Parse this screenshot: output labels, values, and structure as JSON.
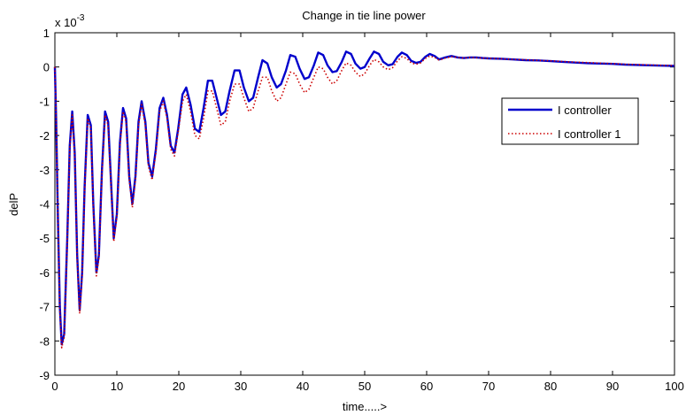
{
  "chart_data": {
    "type": "line",
    "title": "Change in tie line power",
    "xlabel": "time.....>",
    "ylabel": "delP",
    "y_multiplier": "x 10",
    "y_multiplier_exponent": "-3",
    "xlim": [
      0,
      100
    ],
    "ylim": [
      -9,
      1
    ],
    "x_ticks": [
      0,
      10,
      20,
      30,
      40,
      50,
      60,
      70,
      80,
      90,
      100
    ],
    "y_ticks": [
      1,
      0,
      -1,
      -2,
      -3,
      -4,
      -5,
      -6,
      -7,
      -8,
      -9
    ],
    "y_tick_labels": [
      "1",
      "0",
      "-1",
      "-2",
      "-3",
      "-4",
      "-5",
      "-6",
      "-7",
      "-8",
      "-9"
    ],
    "grid": false,
    "legend_position": "upper-right",
    "series": [
      {
        "name": "I controller",
        "color": "#0000cc",
        "style": "solid",
        "x": [
          0,
          0.2,
          0.5,
          0.8,
          1.1,
          1.5,
          2.0,
          2.4,
          2.8,
          3.2,
          3.6,
          4.0,
          4.4,
          4.8,
          5.3,
          5.8,
          6.2,
          6.7,
          7.1,
          7.6,
          8.1,
          8.6,
          9.1,
          9.5,
          10.0,
          10.5,
          11.0,
          11.5,
          12.0,
          12.5,
          13.0,
          13.5,
          14.0,
          14.6,
          15.1,
          15.7,
          16.3,
          16.9,
          17.5,
          18.1,
          18.7,
          19.3,
          19.9,
          20.6,
          21.2,
          21.9,
          22.6,
          23.3,
          24.0,
          24.7,
          25.4,
          26.1,
          26.8,
          27.5,
          28.2,
          29.0,
          29.8,
          30.5,
          31.3,
          32.0,
          32.8,
          33.5,
          34.3,
          35.0,
          35.8,
          36.5,
          37.3,
          38.0,
          38.8,
          39.5,
          40.3,
          41.0,
          41.8,
          42.5,
          43.3,
          44.0,
          44.8,
          45.5,
          46.3,
          47.0,
          47.8,
          48.5,
          49.3,
          50.0,
          50.8,
          51.5,
          52.3,
          53.0,
          53.8,
          54.5,
          55.3,
          56.0,
          56.8,
          57.5,
          58.3,
          59.0,
          59.8,
          60.5,
          61.3,
          62.0,
          63.0,
          64.0,
          65.0,
          66.0,
          67.0,
          68.0,
          69.0,
          70.0,
          72.0,
          74.0,
          76.0,
          78.0,
          80.0,
          82.0,
          84.0,
          86.0,
          88.0,
          90.0,
          92.0,
          94.0,
          96.0,
          98.0,
          100.0
        ],
        "y": [
          0,
          -1.5,
          -4.5,
          -7.0,
          -8.1,
          -7.8,
          -5.0,
          -2.3,
          -1.3,
          -2.5,
          -5.5,
          -7.1,
          -6.0,
          -3.5,
          -1.4,
          -1.7,
          -4.0,
          -6.0,
          -5.5,
          -3.0,
          -1.3,
          -1.6,
          -3.5,
          -5.0,
          -4.3,
          -2.2,
          -1.2,
          -1.5,
          -3.2,
          -4.0,
          -3.2,
          -1.6,
          -1.0,
          -1.6,
          -2.8,
          -3.2,
          -2.4,
          -1.2,
          -0.9,
          -1.4,
          -2.3,
          -2.5,
          -1.8,
          -0.8,
          -0.6,
          -1.1,
          -1.8,
          -1.9,
          -1.2,
          -0.4,
          -0.4,
          -0.9,
          -1.4,
          -1.3,
          -0.7,
          -0.1,
          -0.1,
          -0.6,
          -1.0,
          -0.9,
          -0.3,
          0.2,
          0.1,
          -0.3,
          -0.6,
          -0.5,
          -0.1,
          0.35,
          0.3,
          -0.05,
          -0.35,
          -0.3,
          0.05,
          0.42,
          0.35,
          0.05,
          -0.15,
          -0.12,
          0.15,
          0.45,
          0.38,
          0.1,
          -0.05,
          0.0,
          0.25,
          0.45,
          0.38,
          0.15,
          0.05,
          0.08,
          0.3,
          0.42,
          0.35,
          0.18,
          0.12,
          0.15,
          0.3,
          0.38,
          0.32,
          0.22,
          0.28,
          0.32,
          0.28,
          0.26,
          0.28,
          0.28,
          0.26,
          0.25,
          0.24,
          0.22,
          0.2,
          0.19,
          0.17,
          0.15,
          0.13,
          0.11,
          0.1,
          0.09,
          0.07,
          0.06,
          0.05,
          0.04,
          0.03
        ]
      },
      {
        "name": "I controller 1",
        "color": "#cc0000",
        "style": "dotted",
        "x": [
          0,
          0.2,
          0.5,
          0.8,
          1.1,
          1.5,
          2.0,
          2.4,
          2.8,
          3.2,
          3.6,
          4.0,
          4.4,
          4.8,
          5.3,
          5.8,
          6.2,
          6.7,
          7.1,
          7.6,
          8.1,
          8.6,
          9.1,
          9.5,
          10.0,
          10.5,
          11.0,
          11.5,
          12.0,
          12.5,
          13.0,
          13.5,
          14.0,
          14.6,
          15.1,
          15.7,
          16.3,
          16.9,
          17.5,
          18.1,
          18.7,
          19.3,
          19.9,
          20.6,
          21.2,
          21.9,
          22.6,
          23.3,
          24.0,
          24.7,
          25.4,
          26.1,
          26.8,
          27.5,
          28.2,
          29.0,
          29.8,
          30.5,
          31.3,
          32.0,
          32.8,
          33.5,
          34.3,
          35.0,
          35.8,
          36.5,
          37.3,
          38.0,
          38.8,
          39.5,
          40.3,
          41.0,
          41.8,
          42.5,
          43.3,
          44.0,
          44.8,
          45.5,
          46.3,
          47.0,
          47.8,
          48.5,
          49.3,
          50.0,
          50.8,
          51.5,
          52.3,
          53.0,
          53.8,
          54.5,
          55.3,
          56.0,
          56.8,
          57.5,
          58.3,
          59.0,
          59.8,
          60.5,
          61.3,
          62.0,
          63.0,
          64.0,
          65.0,
          66.0,
          67.0,
          68.0,
          69.0,
          70.0,
          72.0,
          74.0,
          76.0,
          78.0,
          80.0,
          82.0,
          84.0,
          86.0,
          88.0,
          90.0,
          92.0,
          94.0,
          96.0,
          98.0,
          100.0
        ],
        "y": [
          0,
          -1.5,
          -4.5,
          -7.1,
          -8.2,
          -7.9,
          -5.1,
          -2.4,
          -1.4,
          -2.6,
          -5.6,
          -7.2,
          -6.1,
          -3.6,
          -1.5,
          -1.8,
          -4.1,
          -6.1,
          -5.6,
          -3.1,
          -1.4,
          -1.7,
          -3.6,
          -5.1,
          -4.4,
          -2.3,
          -1.3,
          -1.6,
          -3.3,
          -4.1,
          -3.3,
          -1.7,
          -1.1,
          -1.7,
          -2.9,
          -3.3,
          -2.5,
          -1.3,
          -1.0,
          -1.5,
          -2.4,
          -2.6,
          -1.9,
          -1.0,
          -0.8,
          -1.3,
          -2.0,
          -2.1,
          -1.5,
          -0.7,
          -0.7,
          -1.2,
          -1.7,
          -1.6,
          -1.0,
          -0.5,
          -0.5,
          -0.9,
          -1.3,
          -1.2,
          -0.7,
          -0.3,
          -0.3,
          -0.7,
          -1.0,
          -0.9,
          -0.5,
          -0.15,
          -0.2,
          -0.5,
          -0.75,
          -0.65,
          -0.3,
          0.0,
          -0.05,
          -0.3,
          -0.5,
          -0.4,
          -0.1,
          0.12,
          0.05,
          -0.15,
          -0.28,
          -0.2,
          0.05,
          0.22,
          0.15,
          0.0,
          -0.08,
          -0.02,
          0.18,
          0.3,
          0.25,
          0.12,
          0.08,
          0.12,
          0.25,
          0.32,
          0.28,
          0.2,
          0.26,
          0.3,
          0.28,
          0.26,
          0.28,
          0.27,
          0.26,
          0.25,
          0.24,
          0.22,
          0.21,
          0.19,
          0.18,
          0.16,
          0.14,
          0.13,
          0.11,
          0.1,
          0.08,
          0.07,
          0.06,
          0.05,
          0.04
        ]
      }
    ]
  }
}
